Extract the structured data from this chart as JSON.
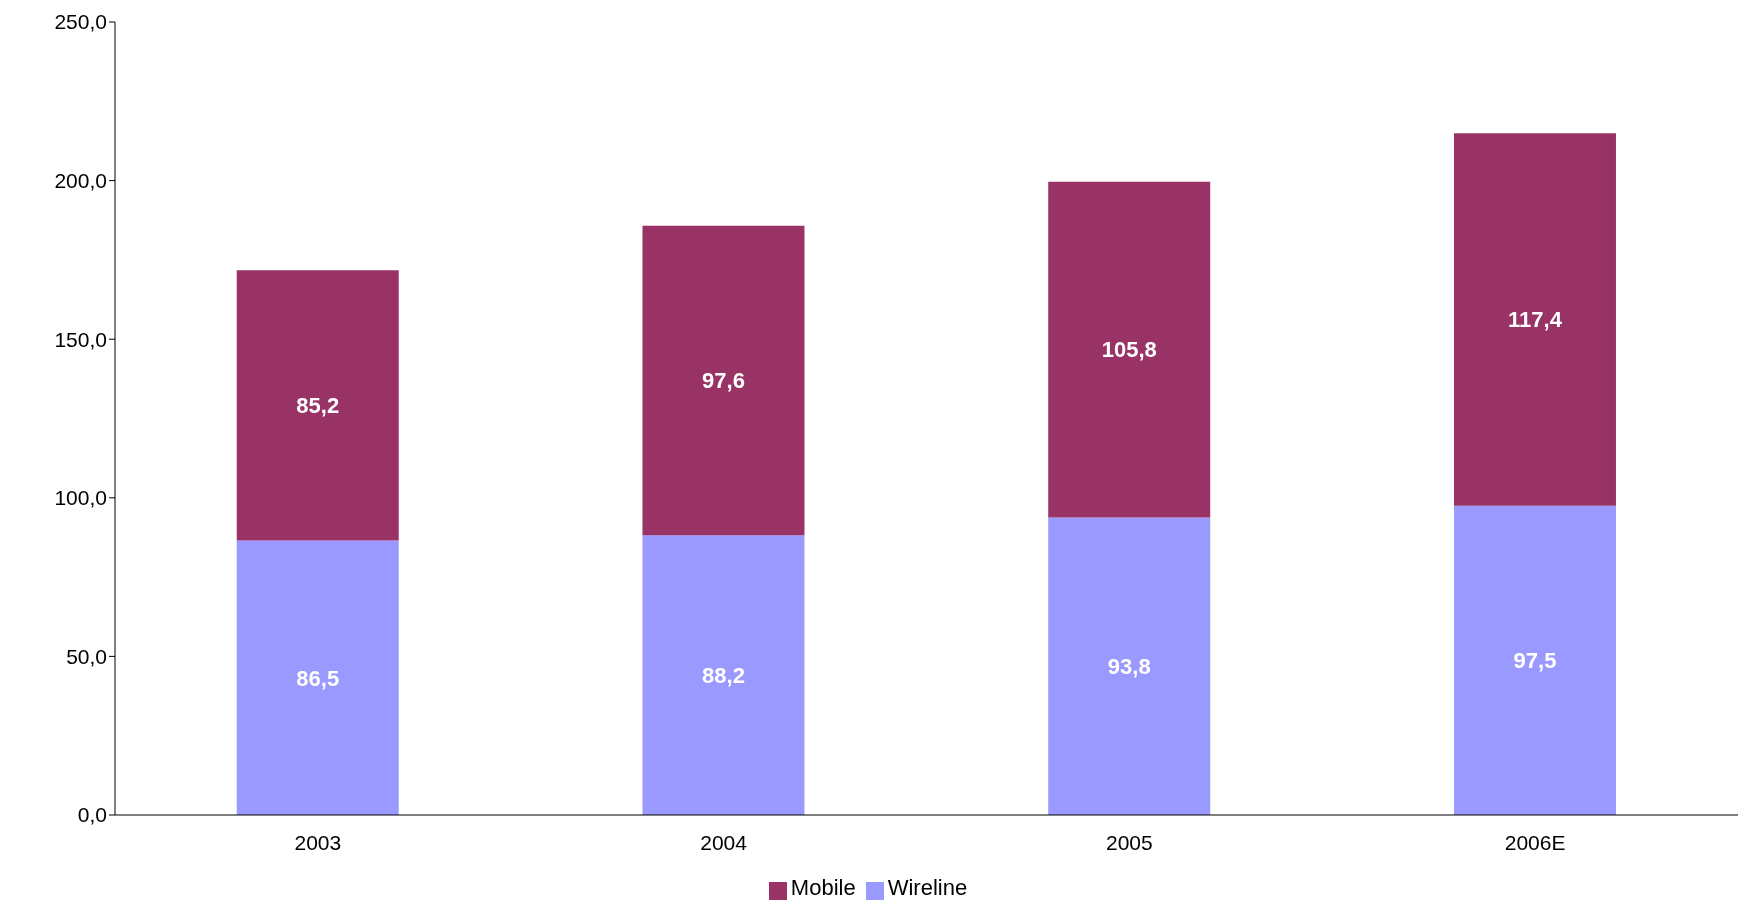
{
  "chart_data": {
    "type": "bar",
    "stacked": true,
    "categories": [
      "2003",
      "2004",
      "2005",
      "2006E"
    ],
    "series": [
      {
        "name": "Wireline",
        "color": "#9999ff",
        "values": [
          86.5,
          88.2,
          93.8,
          97.5
        ],
        "value_labels": [
          "86,5",
          "88,2",
          "93,8",
          "97,5"
        ]
      },
      {
        "name": "Mobile",
        "color": "#993366",
        "values": [
          85.2,
          97.6,
          105.8,
          117.4
        ],
        "value_labels": [
          "85,2",
          "97,6",
          "105,8",
          "117,4"
        ]
      }
    ],
    "ylim": [
      0,
      250
    ],
    "yticks": [
      {
        "value": 0,
        "label": "0,0"
      },
      {
        "value": 50,
        "label": "50,0"
      },
      {
        "value": 100,
        "label": "100,0"
      },
      {
        "value": 150,
        "label": "150,0"
      },
      {
        "value": 200,
        "label": "200,0"
      },
      {
        "value": 250,
        "label": "250,0"
      }
    ],
    "grid": false,
    "legend": "bottom"
  }
}
